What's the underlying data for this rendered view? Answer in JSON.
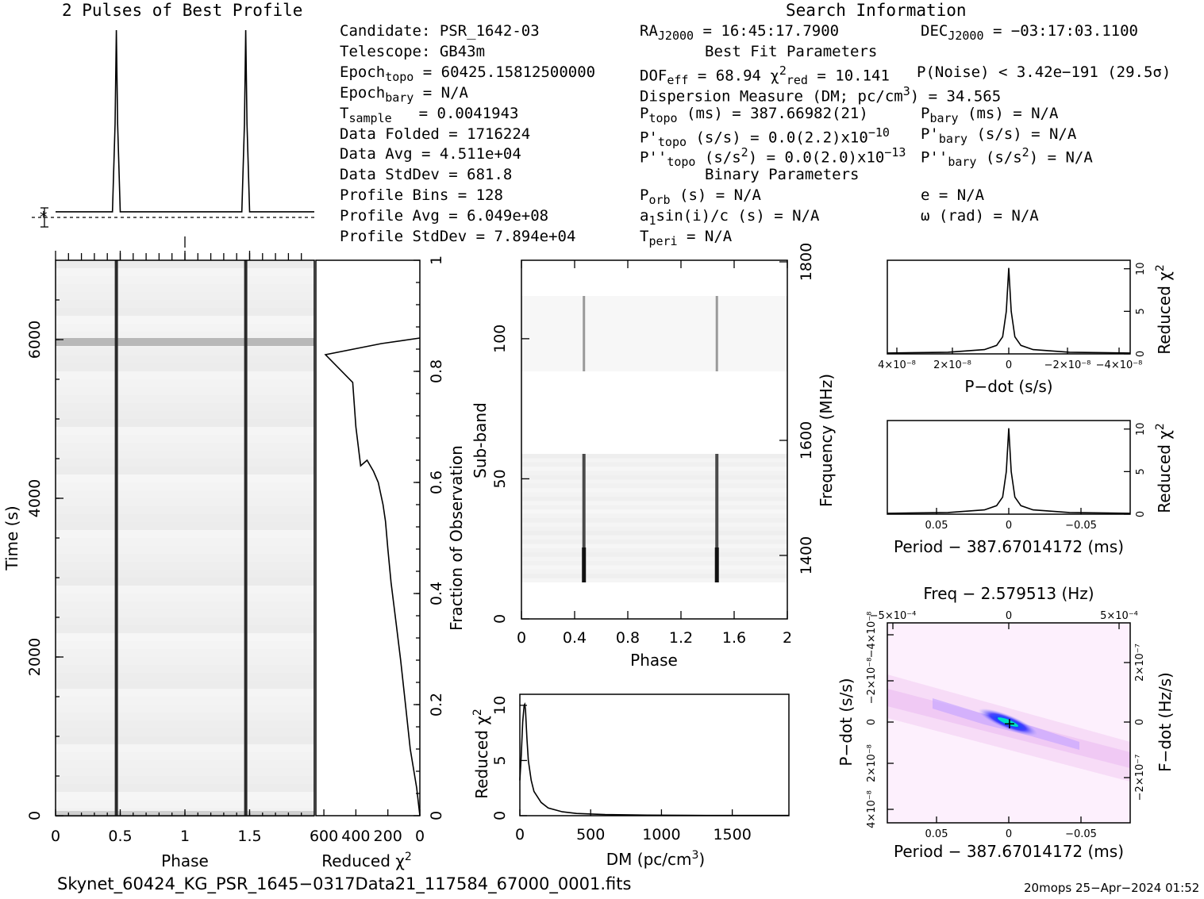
{
  "header": {
    "profile_title": "2 Pulses of Best Profile",
    "search_title": "Search Information",
    "candidate": "Candidate:  PSR_1642-03",
    "telescope": "Telescope:  GB43m",
    "epoch_topo": "Epoch",
    "epoch_topo_sub": "topo",
    "epoch_topo_val": "= 60425.15812500000",
    "epoch_bary": "Epoch",
    "epoch_bary_sub": "bary",
    "epoch_bary_val": "= N/A",
    "t_sample": "T",
    "t_sample_sub": "sample",
    "t_sample_val": "=  0.0041943",
    "data_folded": "Data Folded    =  1716224",
    "data_avg": "Data Avg       =  4.511e+04",
    "data_stddev": "Data StdDev    =  681.8",
    "profile_bins": "Profile Bins   =  128",
    "profile_avg": "Profile Avg    =  6.049e+08",
    "profile_stddev": "Profile StdDev =  7.894e+04",
    "ra": "RA",
    "ra_sub": "J2000",
    "ra_val": "= 16:45:17.7900",
    "dec": "DEC",
    "dec_sub": "J2000",
    "dec_val": "= −03:17:03.1100",
    "best_fit": "Best Fit Parameters",
    "dof": "DOF",
    "dof_sub": "eff",
    "dof_val": "= 68.94  χ",
    "chi_sup": "2",
    "chi_sub": "red",
    "chi_val": "= 10.141",
    "pnoise": "P(Noise) < 3.42e−191  (29.5σ)",
    "dm_line": "Dispersion Measure (DM; pc/cm",
    "dm_sup": "3",
    "dm_val": ") = 34.565",
    "p_topo": "P",
    "p_topo_sub": "topo",
    "p_topo_val": "(ms) =  387.66982(21)",
    "p_bary": "P",
    "p_bary_sub": "bary",
    "p_bary_val": "(ms) = N/A",
    "pd_topo": "P'",
    "pd_topo_sub": "topo",
    "pd_topo_val": "(s/s) = 0.0(2.2)x10",
    "pd_topo_exp": "−10",
    "pd_bary": "P'",
    "pd_bary_sub": "bary",
    "pd_bary_val": "(s/s) = N/A",
    "pdd_topo": "P''",
    "pdd_topo_sub": "topo",
    "pdd_topo_val": "(s/s",
    "pdd_topo_sup": "2",
    "pdd_topo_val2": ") = 0.0(2.0)x10",
    "pdd_topo_exp": "−13",
    "pdd_bary": "P''",
    "pdd_bary_sub": "bary",
    "pdd_bary_val": "(s/s",
    "pdd_bary_sup": "2",
    "pdd_bary_val2": ") = N/A",
    "binary": "Binary Parameters",
    "porb": "P",
    "porb_sub": "orb",
    "porb_val": "(s) = N/A",
    "e": "e = N/A",
    "a1": "a",
    "a1_sub": "1",
    "a1_val": "sin(i)/c (s) = N/A",
    "omega": "ω (rad) = N/A",
    "tperi": "T",
    "tperi_sub": "peri",
    "tperi_val": "= N/A"
  },
  "footer": {
    "filename": "Skynet_60424_KG_PSR_1645−0317Data21_117584_67000_0001.fits",
    "stamp": "20mops 25−Apr−2024 01:52"
  },
  "chart_data": [
    {
      "type": "line",
      "name": "profile",
      "title": "2 Pulses of Best Profile",
      "x": [
        0,
        0.44,
        0.46,
        0.47,
        0.48,
        0.5,
        0.9,
        0.94,
        0.95,
        0.96,
        0.98,
        1.0,
        1.44,
        1.46,
        1.47,
        1.48,
        1.5,
        1.9,
        1.94,
        1.95,
        1.96,
        1.98,
        2.0
      ],
      "values": [
        0.03,
        0.03,
        0.5,
        1.0,
        0.5,
        0.03,
        0.03,
        0.03,
        0.03,
        0.03,
        0.03,
        0.03,
        0.03,
        0.5,
        1.0,
        0.5,
        0.03,
        0.03,
        0.03,
        0.03,
        0.03,
        0.03,
        0.03
      ]
    },
    {
      "type": "heatmap",
      "name": "time-vs-phase",
      "xlabel": "Phase",
      "ylabel": "Time (s)",
      "xlim": [
        0,
        2
      ],
      "ylim": [
        0,
        7000
      ],
      "xticks": [
        "0",
        "0.5",
        "1",
        "1.5"
      ],
      "yticks": [
        "0",
        "2000",
        "4000",
        "6000"
      ],
      "pulse_phases": [
        0.47,
        1.47
      ]
    },
    {
      "type": "line",
      "name": "reduced-chi2-vs-fraction",
      "xlabel": "Reduced χ",
      "xlabel_sup": "2",
      "ylabel": "Fraction of Observation",
      "xticks": [
        "600",
        "400",
        "200",
        "0"
      ],
      "yticks": [
        "0",
        "0.2",
        "0.4",
        "0.6",
        "0.8",
        "1"
      ],
      "x": [
        0,
        20,
        60,
        90,
        120,
        150,
        180,
        200,
        215,
        230,
        260,
        290,
        330,
        370,
        400,
        420,
        590,
        240,
        0
      ],
      "y": [
        0,
        0.05,
        0.12,
        0.2,
        0.28,
        0.35,
        0.42,
        0.48,
        0.53,
        0.56,
        0.6,
        0.62,
        0.64,
        0.63,
        0.7,
        0.78,
        0.83,
        0.85,
        0.86
      ]
    },
    {
      "type": "heatmap",
      "name": "subband-vs-phase",
      "xlabel": "Phase",
      "ylabel": "Sub-band",
      "y2label": "Frequency (MHz)",
      "xlim": [
        0,
        2
      ],
      "ylim": [
        0,
        128
      ],
      "xticks": [
        "0",
        "0.4",
        "0.8",
        "1.2",
        "1.6",
        "2"
      ],
      "yticks": [
        "0",
        "50",
        "100"
      ],
      "y2ticks": [
        "1400",
        "1600",
        "1800"
      ],
      "pulse_phases": [
        0.47,
        1.47
      ]
    },
    {
      "type": "line",
      "name": "dm-curve",
      "xlabel": "DM (pc/cm",
      "xlabel_sup": "3",
      "xlabel_end": ")",
      "ylabel": "Reduced χ",
      "ylabel_sup": "2",
      "xlim": [
        0,
        1900
      ],
      "ylim": [
        0,
        11
      ],
      "xticks": [
        "0",
        "500",
        "1000",
        "1500"
      ],
      "yticks": [
        "0",
        "5",
        "10"
      ],
      "x": [
        0,
        10,
        20,
        30,
        35,
        40,
        50,
        60,
        80,
        100,
        150,
        200,
        300,
        400,
        600,
        900,
        1200,
        1900
      ],
      "values": [
        3.2,
        5.5,
        8.5,
        10.0,
        10.1,
        9.6,
        7.0,
        5.0,
        3.2,
        2.2,
        1.2,
        0.7,
        0.35,
        0.2,
        0.1,
        0.05,
        0.03,
        0.02
      ]
    },
    {
      "type": "line",
      "name": "pdot-curve",
      "xlabel": "P−dot (s/s)",
      "ylabel": "Reduced χ",
      "ylabel_sup": "2",
      "xticks": [
        "4×10⁻⁸",
        "2×10⁻⁸",
        "0",
        "−2×10⁻⁸",
        "−4×10⁻⁸"
      ],
      "yticks": [
        "0",
        "5",
        "10"
      ],
      "x": [
        -1,
        -0.5,
        -0.2,
        -0.1,
        -0.05,
        -0.02,
        0,
        0.02,
        0.05,
        0.1,
        0.2,
        0.5,
        1
      ],
      "values": [
        0.1,
        0.2,
        0.5,
        1.0,
        2.0,
        5.0,
        10.1,
        5.0,
        2.0,
        1.0,
        0.5,
        0.2,
        0.1
      ]
    },
    {
      "type": "line",
      "name": "period-curve",
      "xlabel": "Period − 387.67014172 (ms)",
      "ylabel": "Reduced χ",
      "ylabel_sup": "2",
      "xticks": [
        "0.05",
        "0",
        "−0.05"
      ],
      "yticks": [
        "0",
        "5",
        "10"
      ],
      "x": [
        -1,
        -0.5,
        -0.2,
        -0.1,
        -0.05,
        -0.02,
        0,
        0.02,
        0.05,
        0.1,
        0.2,
        0.5,
        1
      ],
      "values": [
        0.1,
        0.2,
        0.5,
        1.0,
        2.0,
        5.0,
        10.1,
        5.0,
        2.0,
        1.0,
        0.5,
        0.2,
        0.1
      ]
    },
    {
      "type": "heatmap",
      "name": "period-pdot-plane",
      "title": "Freq − 2.579513 (Hz)",
      "xlabel": "Period − 387.67014172 (ms)",
      "ylabel": "P−dot (s/s)",
      "y2label": "F−dot (Hz/s)",
      "xticks": [
        "0.05",
        "0",
        "−0.05"
      ],
      "x2ticks": [
        "−5×10⁻⁴",
        "0",
        "5×10⁻⁴"
      ],
      "yticks": [
        "4×10⁻⁸",
        "2×10⁻⁸",
        "0",
        "−2×10⁻⁸",
        "−4×10⁻⁸"
      ],
      "y2ticks": [
        "−2×10⁻⁷",
        "0",
        "2×10⁻⁷"
      ]
    }
  ]
}
